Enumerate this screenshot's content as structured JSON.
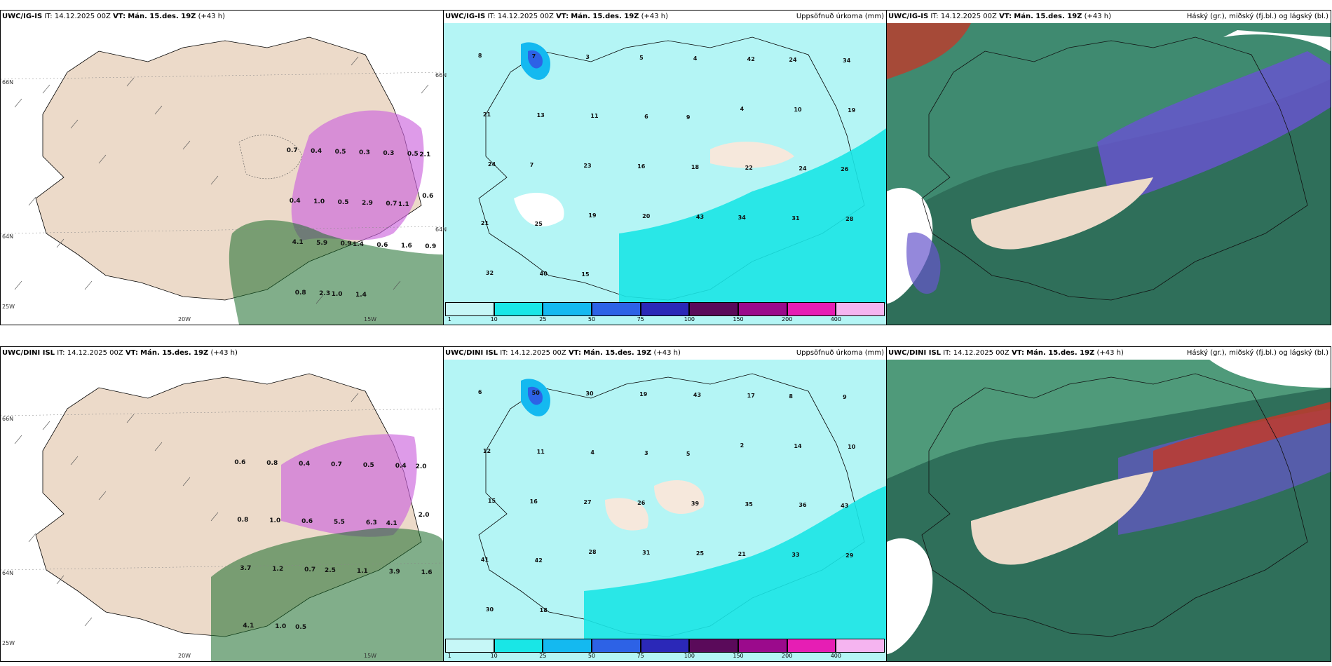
{
  "header_common": {
    "it_label": "IT:",
    "it_value": "14.12.2025 00Z",
    "vt_label": "VT:",
    "vt_value": "Mán. 15.des. 19Z",
    "lead": "(+43 h)"
  },
  "rows": [
    {
      "model": "UWC/IG-IS",
      "wind_panel": {
        "grid_labels": [
          "66N",
          "64N",
          "25W",
          "20W",
          "15W",
          "66N",
          "64N"
        ],
        "precip_values": [
          "0.7",
          "0.4",
          "0.5",
          "0.3",
          "0.3",
          "0.5",
          "2.1",
          "0.4",
          "1.0",
          "0.5",
          "2.9",
          "0.7",
          "1.1",
          "0.6",
          "4.1",
          "5.9",
          "0.9",
          "1.4",
          "0.6",
          "1.6",
          "0.9",
          "0.8",
          "2.3",
          "1.0",
          "1.4"
        ]
      },
      "precip_panel": {
        "title": "Uppsöfnuð úrkoma (mm)",
        "accum_values": [
          "8",
          "7",
          "3",
          "5",
          "4",
          "42",
          "24",
          "34",
          "21",
          "13",
          "11",
          "6",
          "9",
          "4",
          "10",
          "19",
          "24",
          "7",
          "23",
          "16",
          "18",
          "22",
          "24",
          "26",
          "21",
          "25",
          "19",
          "20",
          "43",
          "34",
          "31",
          "28",
          "32",
          "40",
          "15"
        ]
      },
      "cloud_panel": {
        "title": "Háský (gr.), miðský (fj.bl.) og lágský (bl.)"
      }
    },
    {
      "model": "UWC/DINI ISL",
      "wind_panel": {
        "grid_labels": [
          "66N",
          "64N",
          "25W",
          "20W",
          "15W"
        ],
        "precip_values": [
          "0.6",
          "0.8",
          "0.4",
          "0.7",
          "0.5",
          "0.4",
          "2.0",
          "0.8",
          "1.0",
          "0.6",
          "5.5",
          "6.3",
          "4.1",
          "2.0",
          "3.7",
          "1.2",
          "0.7",
          "2.5",
          "1.1",
          "3.9",
          "1.6",
          "4.1",
          "1.0",
          "0.5"
        ]
      },
      "precip_panel": {
        "title": "Uppsöfnuð úrkoma (mm)",
        "accum_values": [
          "6",
          "50",
          "30",
          "19",
          "43",
          "17",
          "8",
          "9",
          "12",
          "11",
          "4",
          "3",
          "5",
          "2",
          "14",
          "10",
          "15",
          "16",
          "27",
          "26",
          "39",
          "35",
          "36",
          "43",
          "41",
          "42",
          "28",
          "31",
          "25",
          "21",
          "33",
          "29",
          "30",
          "18"
        ]
      },
      "cloud_panel": {
        "title": "Háský (gr.), miðský (fj.bl.) og lágský (bl.)"
      }
    }
  ],
  "colorbar": {
    "ticks": [
      "1",
      "10",
      "25",
      "50",
      "75",
      "100",
      "150",
      "200",
      "400"
    ],
    "colors": [
      "#c6f7f7",
      "#19e6e6",
      "#14b9f0",
      "#2d62e6",
      "#2b28b8",
      "#5a0a5a",
      "#9b0a8c",
      "#e61eb4",
      "#f5b4f0"
    ]
  },
  "colors": {
    "land": "#ecdac9",
    "sea_precip": "#b4f5f5",
    "precip_purple": "#cc66dd",
    "precip_green": "#1a6b2a",
    "cloud_high": "#2f6f5a",
    "cloud_mid": "#6655cc",
    "cloud_low": "#c0392b"
  }
}
